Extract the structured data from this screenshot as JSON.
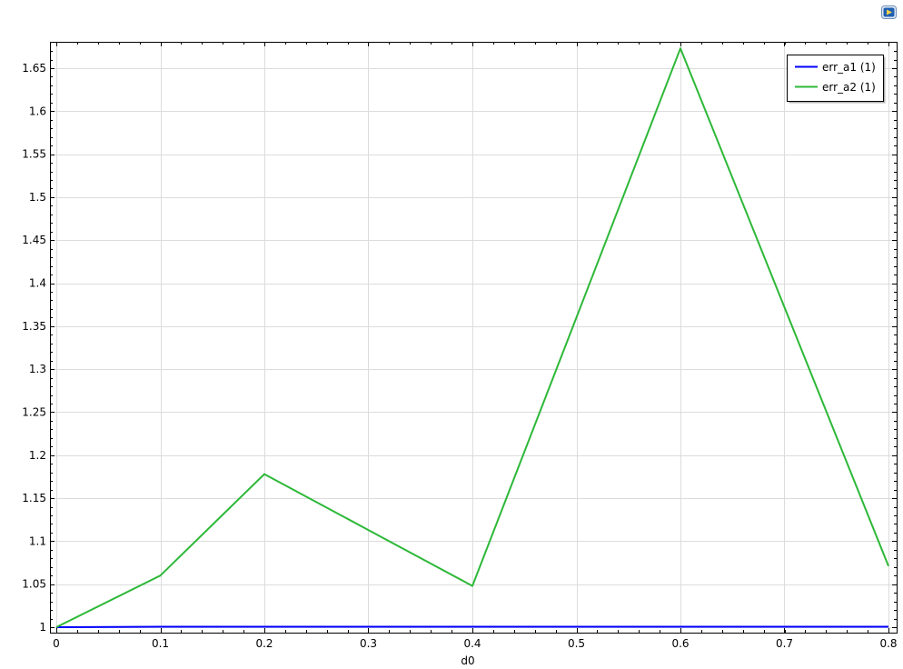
{
  "chart_data": {
    "type": "line",
    "title": "",
    "xlabel": "d0",
    "ylabel": "",
    "xlim": [
      0,
      0.8
    ],
    "ylim": [
      0.995,
      1.68
    ],
    "xticks": [
      0,
      0.1,
      0.2,
      0.3,
      0.4,
      0.5,
      0.6,
      0.7,
      0.8
    ],
    "xtick_labels": [
      "0",
      "0.1",
      "0.2",
      "0.3",
      "0.4",
      "0.5",
      "0.6",
      "0.7",
      "0.8"
    ],
    "yticks": [
      1,
      1.05,
      1.1,
      1.15,
      1.2,
      1.25,
      1.3,
      1.35,
      1.4,
      1.45,
      1.5,
      1.55,
      1.6,
      1.65
    ],
    "ytick_labels": [
      "1",
      "1.05",
      "1.1",
      "1.15",
      "1.2",
      "1.25",
      "1.3",
      "1.35",
      "1.4",
      "1.45",
      "1.5",
      "1.55",
      "1.6",
      "1.65"
    ],
    "grid": true,
    "legend_position": "top-right",
    "series": [
      {
        "name": "err_a1 (1)",
        "color": "#0000ff",
        "x": [
          0,
          0.1,
          0.2,
          0.3,
          0.4,
          0.5,
          0.6,
          0.7,
          0.8
        ],
        "y": [
          1.0,
          1.0005,
          1.0005,
          1.0005,
          1.0005,
          1.0005,
          1.0005,
          1.0005,
          1.0005
        ]
      },
      {
        "name": "err_a2 (1)",
        "color": "#2db838",
        "x": [
          0,
          0.1,
          0.2,
          0.3,
          0.4,
          0.5,
          0.6,
          0.7,
          0.8
        ],
        "y": [
          1.0,
          1.06,
          1.178,
          1.113,
          1.048,
          1.36,
          1.673,
          1.372,
          1.071
        ]
      }
    ]
  },
  "toolbar": {
    "corner_icon": "play-icon"
  }
}
